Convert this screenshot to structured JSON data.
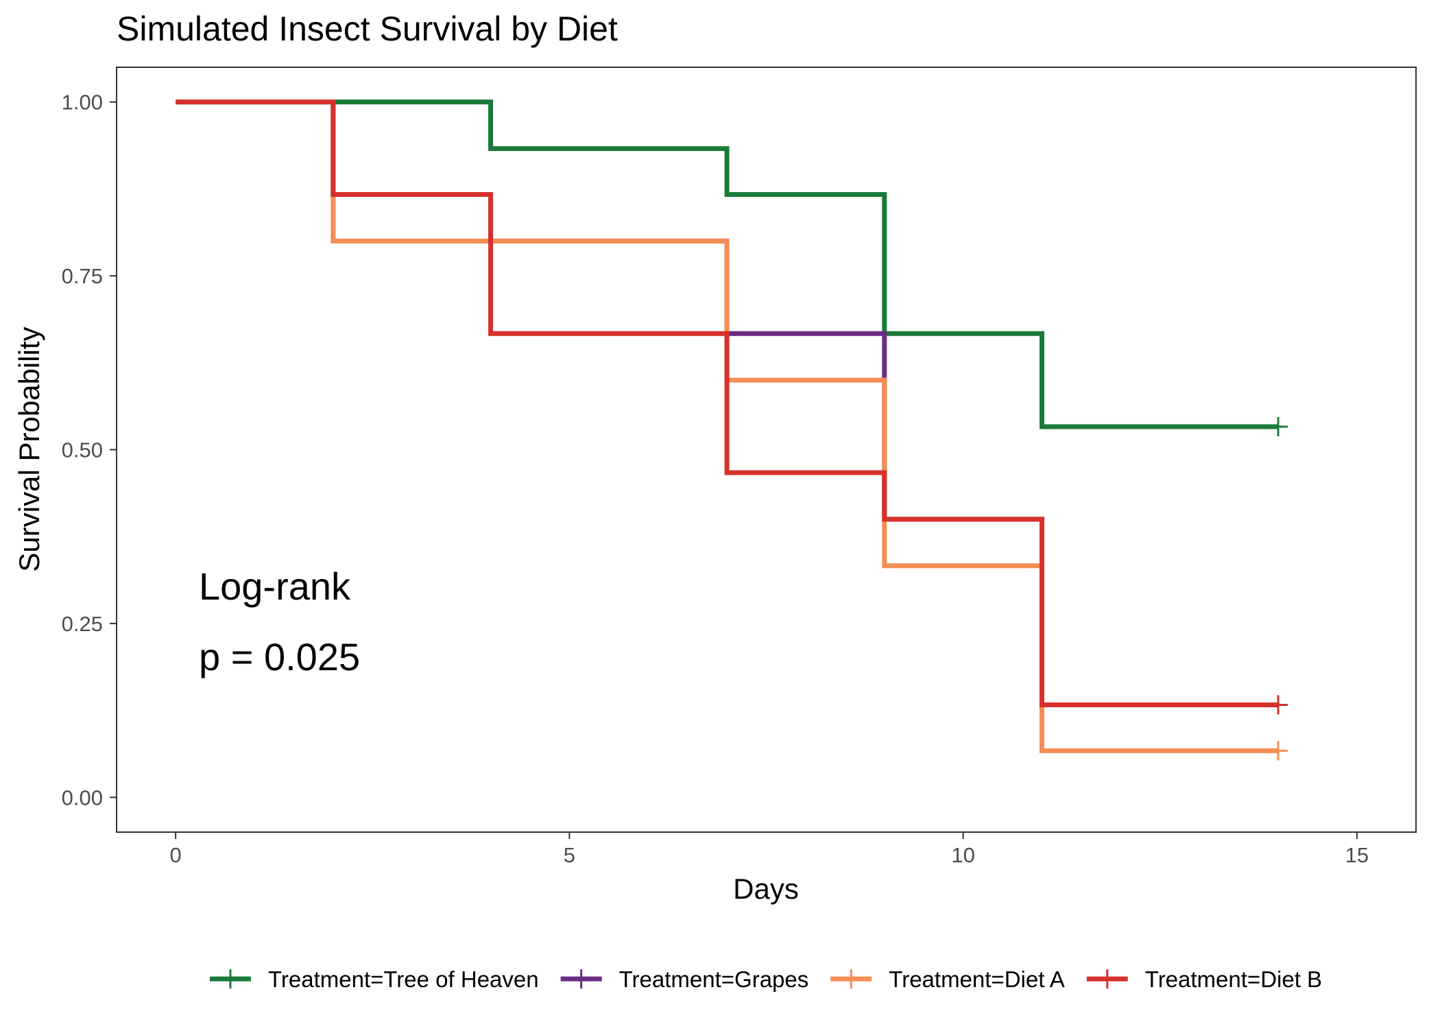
{
  "chart_data": {
    "type": "line",
    "subtype": "kaplan-meier step",
    "title": "Simulated Insect Survival by Diet",
    "xlabel": "Days",
    "ylabel": "Survival Probability",
    "xlim": [
      -0.75,
      15.75
    ],
    "ylim": [
      -0.05,
      1.05
    ],
    "x_ticks": [
      0,
      5,
      10,
      15
    ],
    "x_tick_labels": [
      "0",
      "5",
      "10",
      "15"
    ],
    "y_ticks": [
      0,
      0.25,
      0.5,
      0.75,
      1
    ],
    "y_tick_labels": [
      "0.00",
      "0.25",
      "0.50",
      "0.75",
      "1.00"
    ],
    "grid": false,
    "legend_position": "bottom",
    "annotation": {
      "line1": "Log-rank",
      "line2": "p = 0.025"
    },
    "series": [
      {
        "name": "Treatment=Tree of Heaven",
        "color": "#1b7a3a",
        "points": [
          [
            0,
            1.0
          ],
          [
            4,
            0.933
          ],
          [
            7,
            0.867
          ],
          [
            9,
            0.667
          ],
          [
            11,
            0.533
          ],
          [
            14,
            0.533
          ]
        ],
        "censor": [
          [
            14,
            0.533
          ]
        ]
      },
      {
        "name": "Treatment=Grapes",
        "color": "#6a2c86",
        "points": [
          [
            0,
            1.0
          ],
          [
            2,
            0.867
          ],
          [
            4,
            0.8
          ],
          [
            7,
            0.667
          ],
          [
            9,
            0.4
          ],
          [
            11,
            0.133
          ],
          [
            14,
            0.133
          ]
        ],
        "censor": []
      },
      {
        "name": "Treatment=Diet A",
        "color": "#f58d55",
        "points": [
          [
            0,
            1.0
          ],
          [
            2,
            0.8
          ],
          [
            4,
            0.8
          ],
          [
            7,
            0.6
          ],
          [
            9,
            0.333
          ],
          [
            11,
            0.067
          ],
          [
            14,
            0.067
          ]
        ],
        "censor": [
          [
            14,
            0.067
          ]
        ]
      },
      {
        "name": "Treatment=Diet B",
        "color": "#d7312c",
        "points": [
          [
            0,
            1.0
          ],
          [
            2,
            0.867
          ],
          [
            4,
            0.667
          ],
          [
            7,
            0.467
          ],
          [
            9,
            0.4
          ],
          [
            11,
            0.133
          ],
          [
            14,
            0.133
          ]
        ],
        "censor": [
          [
            14,
            0.133
          ]
        ]
      }
    ]
  }
}
